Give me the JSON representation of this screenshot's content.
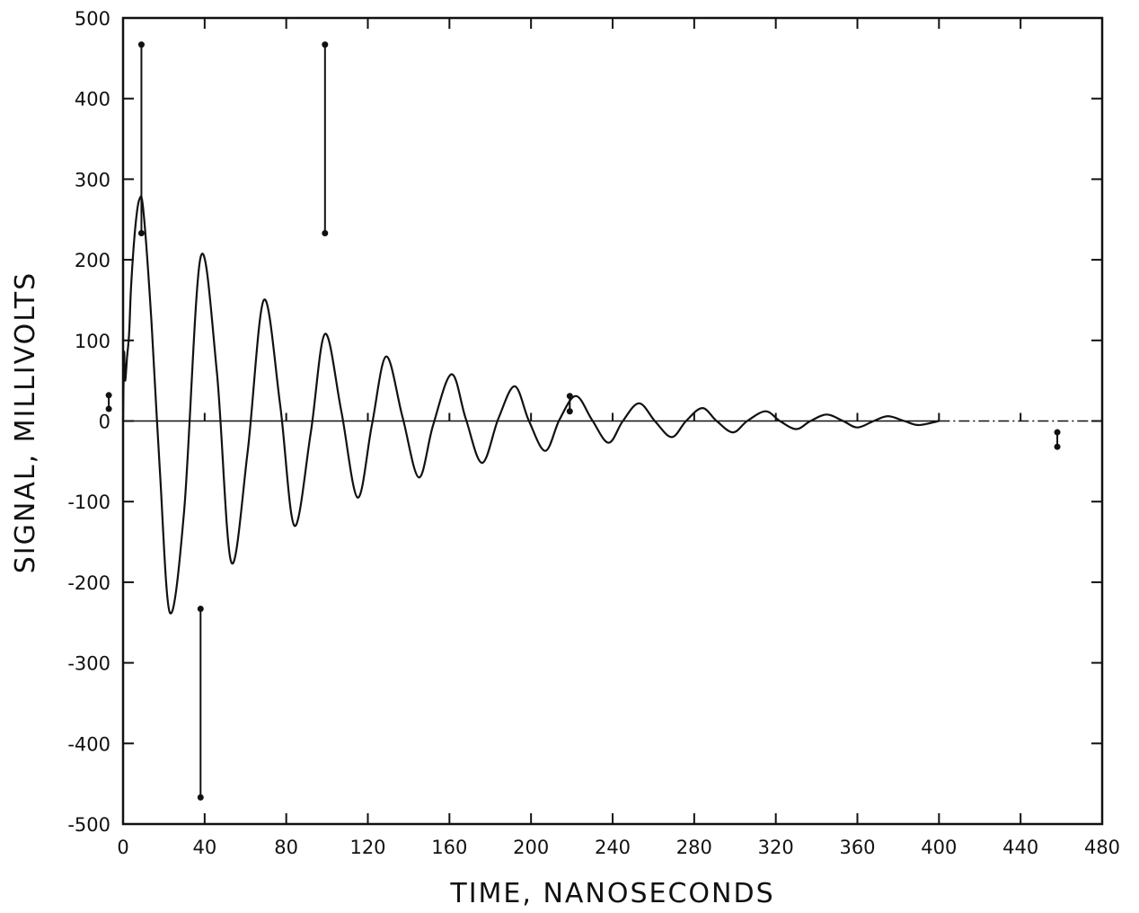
{
  "chart_data": {
    "type": "line",
    "title": "",
    "xlabel": "TIME, NANOSECONDS",
    "ylabel": "SIGNAL, MILLIVOLTS",
    "xlim": [
      0,
      480
    ],
    "ylim": [
      -500,
      500
    ],
    "x_ticks": [
      "0",
      "40",
      "80",
      "120",
      "160",
      "200",
      "240",
      "280",
      "320",
      "360",
      "400",
      "440",
      "480"
    ],
    "y_ticks": [
      "-500",
      "-400",
      "-300",
      "-200",
      "-100",
      "0",
      "100",
      "200",
      "300",
      "400",
      "500"
    ],
    "grid": false,
    "legend": "none",
    "series": [
      {
        "x": [
          0,
          0.5,
          1,
          2,
          3,
          4,
          6,
          8,
          10,
          14,
          18,
          23,
          30,
          38,
          46,
          53,
          61,
          69,
          77,
          84,
          92,
          99,
          107,
          115,
          122,
          129,
          137,
          145,
          152,
          161,
          168,
          176,
          184,
          192,
          199,
          207,
          214,
          222,
          230,
          238,
          245,
          253,
          261,
          269,
          276,
          284,
          291,
          299,
          306,
          315,
          322,
          330,
          337,
          345,
          353,
          360,
          368,
          375,
          383,
          390,
          400
        ],
        "y": [
          0,
          85,
          50,
          80,
          110,
          170,
          240,
          275,
          260,
          120,
          -60,
          -238,
          -110,
          203,
          60,
          -175,
          -40,
          150,
          20,
          -130,
          -15,
          108,
          12,
          -95,
          -5,
          80,
          5,
          -70,
          -5,
          58,
          3,
          -52,
          3,
          43,
          0,
          -37,
          2,
          31,
          1,
          -27,
          0,
          22,
          -1,
          -20,
          0,
          16,
          0,
          -14,
          0,
          12,
          0,
          -10,
          0,
          8,
          0,
          -8,
          0,
          6,
          0,
          -5,
          0
        ]
      }
    ],
    "reference_line": {
      "y": 0,
      "x_from": 400,
      "x_to": 480,
      "style": "dash-dot"
    },
    "error_bars": [
      {
        "x": 9,
        "low": 233,
        "high": 467
      },
      {
        "x": 38,
        "low": -467,
        "high": -233
      },
      {
        "x": 99,
        "low": 233,
        "high": 467
      },
      {
        "x": -7,
        "low": 15,
        "high": 32
      },
      {
        "x": 219,
        "low": 12,
        "high": 31
      },
      {
        "x": 458,
        "low": -32,
        "high": -14
      }
    ],
    "colors": {
      "line": "#111111",
      "axes": "#111111",
      "background": "#ffffff"
    }
  }
}
